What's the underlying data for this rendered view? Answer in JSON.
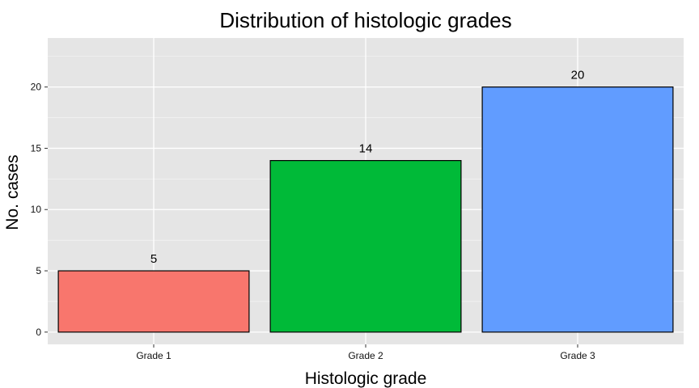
{
  "chart_data": {
    "type": "bar",
    "title": "Distribution of histologic grades",
    "xlabel": "Histologic grade",
    "ylabel": "No. cases",
    "categories": [
      "Grade 1",
      "Grade 2",
      "Grade 3"
    ],
    "values": [
      5,
      14,
      20
    ],
    "data_labels": [
      "5",
      "14",
      "20"
    ],
    "ylim": [
      -1,
      24
    ],
    "yticks": [
      0,
      5,
      10,
      15,
      20
    ],
    "ytick_labels": [
      "0",
      "5",
      "10",
      "15",
      "20"
    ],
    "grid": true,
    "legend": "none",
    "colors": [
      "#F8766D",
      "#00BA38",
      "#619CFF"
    ],
    "panel_background": "#E5E5E5",
    "grid_color": "#FFFFFF",
    "bar_outline": "#000000"
  }
}
